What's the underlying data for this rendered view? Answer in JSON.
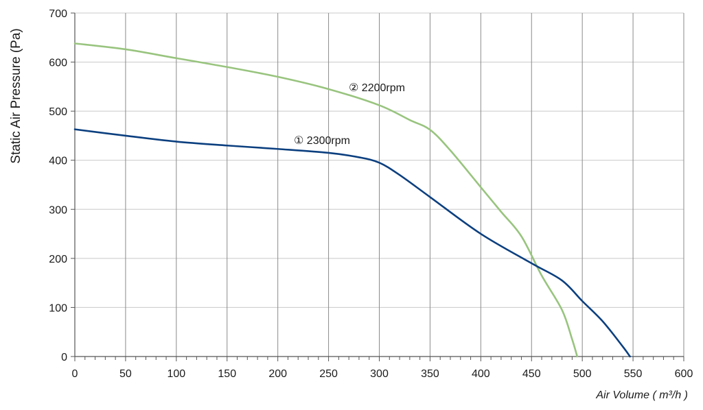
{
  "chart_data": {
    "type": "line",
    "title": "",
    "xlabel": "Air Volume ( m³/h )",
    "ylabel": "Static Air Pressure  (Pa)",
    "xlim": [
      0,
      600
    ],
    "ylim": [
      0,
      700
    ],
    "x_ticks": [
      0,
      50,
      100,
      150,
      200,
      250,
      300,
      350,
      400,
      450,
      500,
      550,
      600
    ],
    "y_ticks": [
      0,
      100,
      200,
      300,
      400,
      500,
      600,
      700
    ],
    "grid": true,
    "minor_x_ticks_per_major": 5,
    "legend": "none (inline labels)",
    "series": [
      {
        "name": "① 2300rpm",
        "color": "#0b3f7f",
        "x": [
          0,
          50,
          100,
          150,
          200,
          250,
          280,
          300,
          320,
          350,
          400,
          450,
          480,
          500,
          520,
          540,
          547
        ],
        "y": [
          463,
          450,
          438,
          430,
          423,
          415,
          406,
          395,
          370,
          325,
          250,
          190,
          155,
          113,
          72,
          20,
          0
        ]
      },
      {
        "name": "② 2200rpm",
        "color": "#98c47e",
        "x": [
          0,
          50,
          100,
          150,
          200,
          250,
          300,
          330,
          350,
          370,
          400,
          420,
          440,
          460,
          480,
          490,
          495
        ],
        "y": [
          638,
          626,
          608,
          590,
          570,
          545,
          512,
          482,
          462,
          420,
          345,
          295,
          245,
          165,
          95,
          35,
          0
        ]
      }
    ]
  }
}
